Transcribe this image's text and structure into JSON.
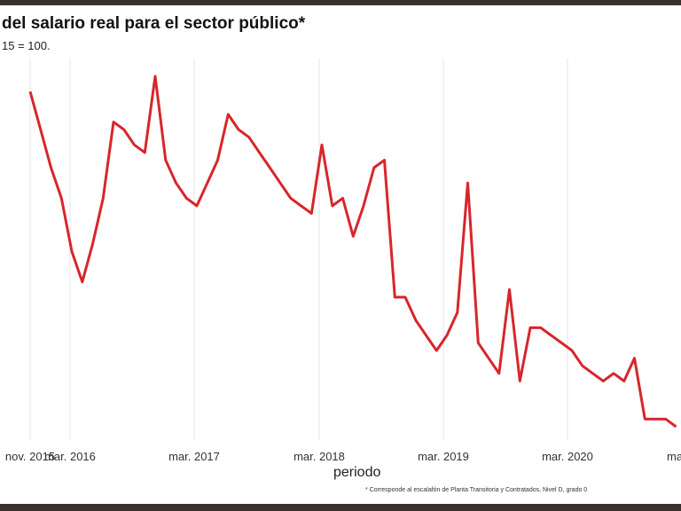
{
  "chart_data": {
    "type": "line",
    "title": "del salario real para el sector público*",
    "subtitle": "15 = 100.",
    "xlabel": "periodo",
    "ylabel": "",
    "note": "* Corresponde al escalafón de Planta Transitoria y Contratados, Nivel D, grado 0",
    "x_ticks": [
      "nov. 2015",
      "mar. 2016",
      "mar. 2017",
      "mar. 2018",
      "mar. 2019",
      "mar. 2020",
      "ma"
    ],
    "grid": "vertical",
    "color": "#d7262b",
    "x": [
      "2015-11",
      "2015-12",
      "2016-01",
      "2016-02",
      "2016-03",
      "2016-04",
      "2016-05",
      "2016-06",
      "2016-07",
      "2016-08",
      "2016-09",
      "2016-10",
      "2016-11",
      "2016-12",
      "2017-01",
      "2017-02",
      "2017-03",
      "2017-04",
      "2017-05",
      "2017-06",
      "2017-07",
      "2017-08",
      "2017-09",
      "2017-10",
      "2017-11",
      "2017-12",
      "2018-01",
      "2018-02",
      "2018-03",
      "2018-04",
      "2018-05",
      "2018-06",
      "2018-07",
      "2018-08",
      "2018-09",
      "2018-10",
      "2018-11",
      "2018-12",
      "2019-01",
      "2019-02",
      "2019-03",
      "2019-04",
      "2019-05",
      "2019-06",
      "2019-07",
      "2019-08",
      "2019-09",
      "2019-10",
      "2019-11",
      "2019-12",
      "2020-01",
      "2020-02",
      "2020-03",
      "2020-04",
      "2020-05",
      "2020-06",
      "2020-07",
      "2020-08",
      "2020-09",
      "2020-10",
      "2020-11",
      "2020-12",
      "2021-01"
    ],
    "values": [
      110,
      105,
      100,
      96,
      89,
      85,
      90,
      96,
      106,
      105,
      103,
      102,
      112,
      101,
      98,
      96,
      95,
      98,
      101,
      107,
      105,
      104,
      102,
      100,
      98,
      96,
      95,
      94,
      103,
      95,
      96,
      91,
      95,
      100,
      101,
      83,
      83,
      80,
      78,
      76,
      78,
      81,
      98,
      77,
      75,
      73,
      84,
      72,
      79,
      79,
      78,
      77,
      76,
      74,
      73,
      72,
      73,
      72,
      75,
      67,
      67,
      67,
      66
    ]
  }
}
